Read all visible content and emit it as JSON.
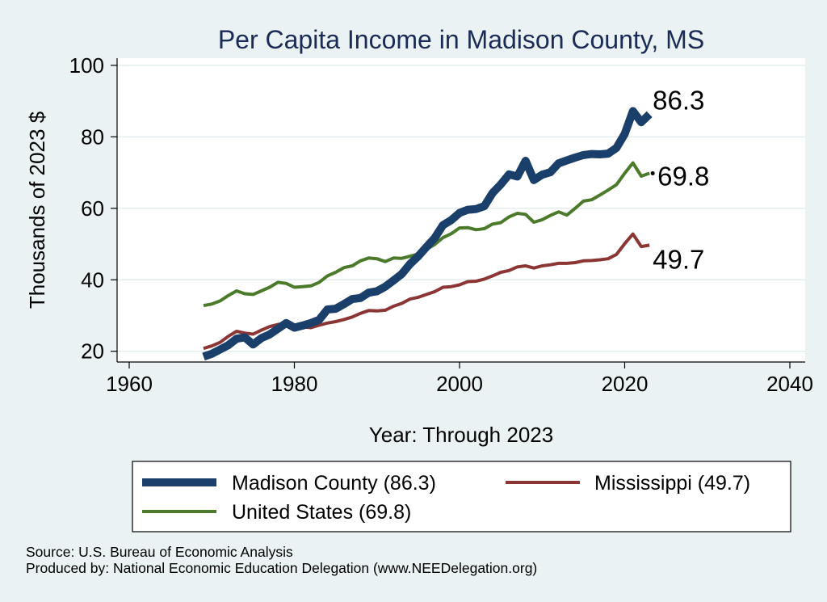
{
  "chart_data": {
    "type": "line",
    "title": "Per Capita Income in Madison County, MS",
    "xlabel": "Year: Through 2023",
    "ylabel": "Thousands of 2023 $",
    "xlim": [
      1960,
      2040
    ],
    "ylim": [
      17,
      102
    ],
    "xticks": [
      1960,
      1980,
      2000,
      2020,
      2040
    ],
    "yticks": [
      20,
      40,
      60,
      80,
      100
    ],
    "x": [
      1969,
      1970,
      1971,
      1972,
      1973,
      1974,
      1975,
      1976,
      1977,
      1978,
      1979,
      1980,
      1981,
      1982,
      1983,
      1984,
      1985,
      1986,
      1987,
      1988,
      1989,
      1990,
      1991,
      1992,
      1993,
      1994,
      1995,
      1996,
      1997,
      1998,
      1999,
      2000,
      2001,
      2002,
      2003,
      2004,
      2005,
      2006,
      2007,
      2008,
      2009,
      2010,
      2011,
      2012,
      2013,
      2014,
      2015,
      2016,
      2017,
      2018,
      2019,
      2020,
      2021,
      2022,
      2023
    ],
    "series": [
      {
        "name": "Madison County",
        "color": "#1a3f6b",
        "end_label": "86.3",
        "values": [
          18.5,
          19.3,
          20.5,
          21.7,
          23.5,
          23.9,
          21.9,
          23.7,
          24.7,
          26.3,
          27.9,
          26.6,
          27.2,
          27.9,
          28.8,
          31.7,
          31.9,
          33.2,
          34.6,
          34.9,
          36.4,
          36.8,
          38.1,
          39.8,
          41.6,
          44.4,
          46.6,
          49.2,
          51.7,
          55.3,
          56.7,
          58.7,
          59.6,
          59.8,
          60.6,
          64.3,
          66.7,
          69.5,
          68.9,
          73.3,
          67.9,
          69.4,
          70.1,
          72.6,
          73.4,
          74.2,
          74.9,
          75.2,
          75.1,
          75.3,
          76.9,
          80.8,
          87.2,
          84.1,
          86.3
        ]
      },
      {
        "name": "Mississippi",
        "color": "#8c3535",
        "end_label": "49.7",
        "values": [
          20.8,
          21.5,
          22.5,
          24.2,
          25.6,
          25.1,
          24.8,
          25.9,
          26.9,
          27.5,
          27.9,
          26.9,
          26.8,
          26.6,
          27.3,
          27.9,
          28.3,
          28.9,
          29.6,
          30.6,
          31.4,
          31.3,
          31.5,
          32.6,
          33.4,
          34.6,
          35.1,
          35.9,
          36.7,
          37.9,
          38.1,
          38.6,
          39.5,
          39.6,
          40.2,
          41.1,
          42.1,
          42.6,
          43.6,
          43.9,
          43.3,
          43.9,
          44.2,
          44.6,
          44.6,
          44.8,
          45.3,
          45.4,
          45.6,
          45.9,
          47.1,
          50.1,
          52.8,
          49.3,
          49.7
        ]
      },
      {
        "name": "United States",
        "color": "#4b7a2a",
        "end_label": "69.8",
        "values": [
          32.8,
          33.2,
          34.1,
          35.6,
          36.9,
          36.1,
          35.9,
          36.9,
          37.9,
          39.3,
          39.0,
          37.9,
          38.1,
          38.3,
          39.3,
          41.1,
          42.1,
          43.4,
          43.9,
          45.3,
          46.1,
          45.9,
          45.1,
          46.1,
          46.0,
          46.6,
          47.2,
          48.5,
          49.9,
          51.8,
          52.9,
          54.5,
          54.6,
          54.0,
          54.3,
          55.6,
          56.0,
          57.6,
          58.6,
          58.3,
          56.1,
          56.8,
          58.0,
          59.0,
          58.1,
          60.0,
          62.0,
          62.4,
          63.7,
          65.1,
          66.6,
          69.8,
          72.7,
          69.0,
          69.8
        ]
      }
    ],
    "legend": {
      "placement": "bottom",
      "entries": [
        "Madison County (86.3)",
        "Mississippi (49.7)",
        "United States (69.8)"
      ]
    }
  },
  "source_line": "Source: U.S. Bureau of Economic Analysis",
  "produced_line": "Produced by: National Economic Education Delegation (www.NEEDelegation.org)"
}
